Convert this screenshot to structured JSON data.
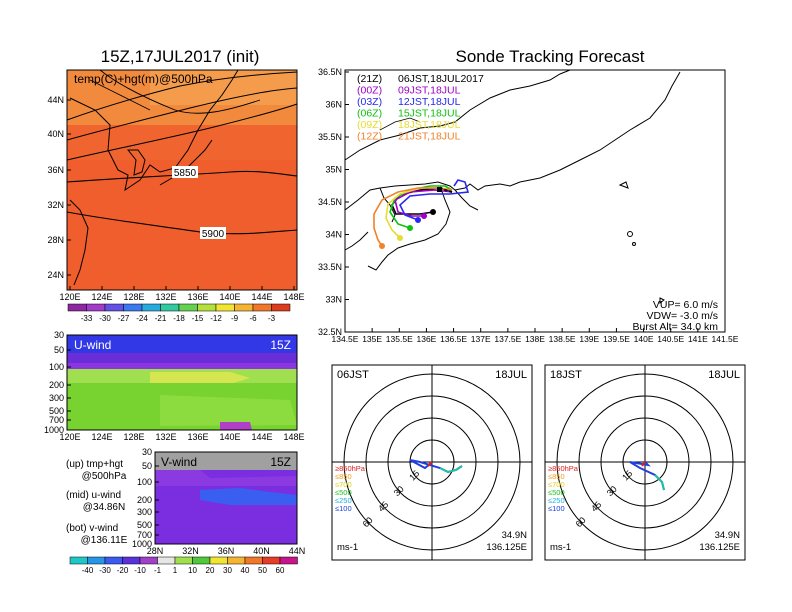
{
  "left_title": "15Z,17JUL2017 (init)",
  "main_title": "Sonde Tracking Forecast",
  "top_map": {
    "label": "temp(C)+hgt(m)@500hPa",
    "lat_ticks": [
      "44N",
      "40N",
      "36N",
      "32N",
      "28N",
      "24N"
    ],
    "lon_ticks": [
      "120E",
      "124E",
      "128E",
      "132E",
      "136E",
      "140E",
      "144E",
      "148E"
    ],
    "contour_labels": [
      "5850",
      "5900"
    ],
    "colorbar_labels": [
      "-33",
      "-30",
      "-27",
      "-24",
      "-21",
      "-18",
      "-15",
      "-12",
      "-9",
      "-6",
      "-3"
    ]
  },
  "uwind": {
    "label": "U-wind",
    "time": "15Z",
    "p_ticks": [
      "30",
      "50",
      "100",
      "200",
      "300",
      "500",
      "700",
      "1000"
    ],
    "lon_ticks": [
      "120E",
      "124E",
      "128E",
      "132E",
      "136E",
      "140E",
      "144E",
      "148E"
    ]
  },
  "vwind": {
    "label": "V-wind",
    "time": "15Z",
    "p_ticks": [
      "30",
      "50",
      "100",
      "200",
      "300",
      "500",
      "700",
      "1000"
    ],
    "lat_ticks": [
      "28N",
      "32N",
      "36N",
      "40N",
      "44N"
    ]
  },
  "notes": [
    {
      "line1": "(up) tmp+hgt",
      "line2": "@500hPa"
    },
    {
      "line1": "(mid) u-wind",
      "line2": "@34.86N"
    },
    {
      "line1": "(bot) v-wind",
      "line2": "@136.11E"
    }
  ],
  "bottom_colorbar_labels": [
    "-40",
    "-30",
    "-20",
    "-10",
    "-1",
    "1",
    "10",
    "20",
    "30",
    "40",
    "50",
    "60"
  ],
  "track_map": {
    "lat_ticks": [
      "36.5N",
      "36N",
      "35.5N",
      "35N",
      "34.5N",
      "34N",
      "33.5N",
      "33N",
      "32.5N"
    ],
    "lon_ticks": [
      "134.5E",
      "135E",
      "135.5E",
      "136E",
      "136.5E",
      "137E",
      "137.5E",
      "138E",
      "138.5E",
      "139E",
      "139.5E",
      "140E",
      "140.5E",
      "141E",
      "141.5E"
    ],
    "legend": [
      {
        "run": "(21Z)",
        "time": "06JST,18JUL2017",
        "color": "#000000"
      },
      {
        "run": "(00Z)",
        "time": "09JST,18JUL",
        "color": "#a000c8"
      },
      {
        "run": "(03Z)",
        "time": "12JST,18JUL",
        "color": "#2828f0"
      },
      {
        "run": "(06Z)",
        "time": "15JST,18JUL",
        "color": "#10c010"
      },
      {
        "run": "(09Z)",
        "time": "18JST,18JUL",
        "color": "#e6dc32"
      },
      {
        "run": "(12Z)",
        "time": "21JST,18JUL",
        "color": "#f08228"
      }
    ],
    "vup": "VUP=  6.0  m/s",
    "vdw": "VDW=  -3.0  m/s",
    "burst": "Burst Alt=  34.0  km"
  },
  "hodographs": [
    {
      "time": "06JST",
      "date": "18JUL",
      "lat": "34.9N",
      "lon": "136.125E",
      "unit": "ms-1"
    },
    {
      "time": "18JST",
      "date": "18JUL",
      "lat": "34.9N",
      "lon": "136.125E",
      "unit": "ms-1"
    }
  ],
  "hodo_legend": [
    {
      "label": "≥850hPa",
      "color": "#e02020"
    },
    {
      "label": "≤850",
      "color": "#f0a020"
    },
    {
      "label": "≤700",
      "color": "#e0d020"
    },
    {
      "label": "≤500",
      "color": "#20c020"
    },
    {
      "label": "≤250",
      "color": "#20b0e0"
    },
    {
      "label": "≤100",
      "color": "#2040e0"
    }
  ],
  "ring_labels": [
    "15",
    "30",
    "45",
    "60"
  ]
}
